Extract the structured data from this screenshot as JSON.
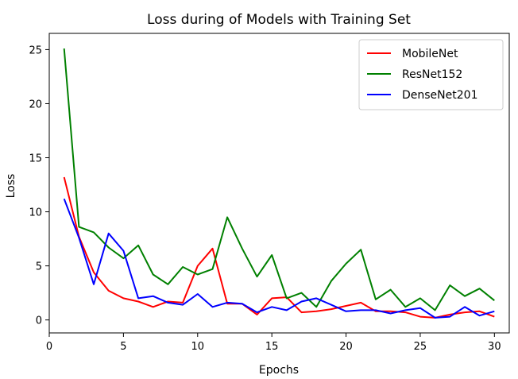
{
  "chart_data": {
    "type": "line",
    "title": "Loss during of Models with Training Set",
    "xlabel": "Epochs",
    "ylabel": "Loss",
    "xlim": [
      0,
      31
    ],
    "ylim": [
      -1.2,
      26.5
    ],
    "xticks": [
      0,
      5,
      10,
      15,
      20,
      25,
      30
    ],
    "yticks": [
      0,
      5,
      10,
      15,
      20,
      25
    ],
    "grid": false,
    "legend_position": "top-right",
    "x": [
      1,
      2,
      3,
      4,
      5,
      6,
      7,
      8,
      9,
      10,
      11,
      12,
      13,
      14,
      15,
      16,
      17,
      18,
      19,
      20,
      21,
      22,
      23,
      24,
      25,
      26,
      27,
      28,
      29,
      30
    ],
    "series": [
      {
        "name": "MobileNet",
        "color": "#ff0000",
        "values": [
          13.2,
          7.7,
          4.4,
          2.7,
          2.0,
          1.7,
          1.2,
          1.7,
          1.6,
          5.0,
          6.6,
          1.5,
          1.5,
          0.5,
          2.0,
          2.1,
          0.7,
          0.8,
          1.0,
          1.3,
          1.6,
          0.8,
          0.8,
          0.7,
          0.3,
          0.2,
          0.5,
          0.7,
          0.8,
          0.3
        ]
      },
      {
        "name": "ResNet152",
        "color": "#008000",
        "values": [
          25.1,
          8.6,
          8.1,
          6.7,
          5.7,
          6.9,
          4.2,
          3.3,
          4.9,
          4.2,
          4.7,
          9.5,
          6.6,
          4.0,
          6.0,
          2.0,
          2.5,
          1.2,
          3.6,
          5.2,
          6.5,
          1.9,
          2.8,
          1.2,
          2.0,
          0.9,
          3.2,
          2.2,
          2.9,
          1.8
        ]
      },
      {
        "name": "DenseNet201",
        "color": "#0000ff",
        "values": [
          11.2,
          7.6,
          3.3,
          8.0,
          6.4,
          2.0,
          2.2,
          1.6,
          1.4,
          2.4,
          1.2,
          1.6,
          1.5,
          0.7,
          1.2,
          0.9,
          1.7,
          2.0,
          1.4,
          0.8,
          0.9,
          0.9,
          0.6,
          0.9,
          1.1,
          0.2,
          0.3,
          1.2,
          0.4,
          0.8
        ]
      }
    ]
  }
}
